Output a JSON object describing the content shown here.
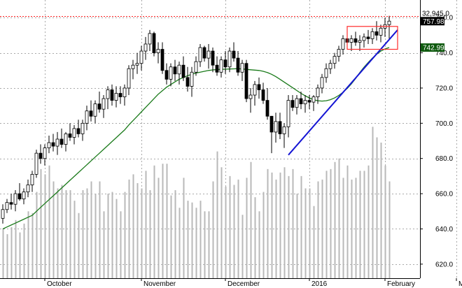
{
  "chart_data": {
    "type": "candlestick",
    "y_axis": {
      "position": "right",
      "ylim": [
        612,
        770
      ],
      "ticks": [
        620,
        640,
        660,
        680,
        700,
        720,
        740,
        760
      ],
      "tick_labels": [
        "620.0",
        "640.0",
        "660.0",
        "680.0",
        "700.0",
        "720.0",
        "740.0",
        "760.0"
      ]
    },
    "x_axis": {
      "month_labels": [
        {
          "label": "October",
          "x": 10
        },
        {
          "label": "November",
          "x": 33
        },
        {
          "label": "December",
          "x": 53
        },
        {
          "label": "2016",
          "x": 73
        },
        {
          "label": "February",
          "x": 91
        },
        {
          "label": "March",
          "x": 108
        }
      ]
    },
    "grid": true,
    "price_tags": [
      {
        "label": "757.98",
        "value": 757.98,
        "bg": "#000000",
        "fg": "#ffffff"
      },
      {
        "label": "742.99",
        "value": 742.99,
        "bg": "#0f5a0f",
        "fg": "#ffffff"
      }
    ],
    "volume_label": "32,945,0",
    "volume_label_value": 762.2,
    "volume_line_value": 761.0,
    "series": [
      {
        "name": "",
        "kind": "ohlc",
        "candles": [
          [
            646,
            654,
            643,
            651
          ],
          [
            651,
            657,
            649,
            655
          ],
          [
            655,
            660,
            651,
            654
          ],
          [
            654,
            662,
            650,
            660
          ],
          [
            660,
            666,
            656,
            657
          ],
          [
            657,
            663,
            654,
            661
          ],
          [
            661,
            668,
            658,
            665
          ],
          [
            665,
            673,
            661,
            671
          ],
          [
            671,
            685,
            669,
            683
          ],
          [
            683,
            688,
            677,
            680
          ],
          [
            680,
            688,
            676,
            686
          ],
          [
            686,
            693,
            683,
            689
          ],
          [
            689,
            694,
            684,
            687
          ],
          [
            687,
            695,
            682,
            691
          ],
          [
            691,
            697,
            686,
            688
          ],
          [
            688,
            695,
            684,
            694
          ],
          [
            694,
            700,
            690,
            692
          ],
          [
            692,
            699,
            688,
            697
          ],
          [
            697,
            702,
            692,
            694
          ],
          [
            694,
            702,
            690,
            700
          ],
          [
            700,
            710,
            696,
            707
          ],
          [
            707,
            713,
            701,
            704
          ],
          [
            704,
            713,
            700,
            711
          ],
          [
            711,
            718,
            706,
            708
          ],
          [
            708,
            716,
            703,
            714
          ],
          [
            714,
            721,
            708,
            719
          ],
          [
            719,
            722,
            710,
            713
          ],
          [
            713,
            721,
            709,
            717
          ],
          [
            717,
            721,
            711,
            715
          ],
          [
            715,
            722,
            710,
            720
          ],
          [
            720,
            733,
            716,
            731
          ],
          [
            731,
            736,
            725,
            733
          ],
          [
            733,
            740,
            728,
            734
          ],
          [
            734,
            744,
            730,
            741
          ],
          [
            741,
            749,
            736,
            745
          ],
          [
            745,
            753,
            741,
            751
          ],
          [
            751,
            752,
            738,
            740
          ],
          [
            740,
            746,
            734,
            742
          ],
          [
            742,
            746,
            728,
            730
          ],
          [
            730,
            734,
            722,
            725
          ],
          [
            725,
            734,
            721,
            732
          ],
          [
            732,
            736,
            724,
            728
          ],
          [
            728,
            735,
            722,
            733
          ],
          [
            733,
            738,
            724,
            726
          ],
          [
            726,
            732,
            718,
            721
          ],
          [
            721,
            732,
            715,
            729
          ],
          [
            729,
            738,
            727,
            735
          ],
          [
            735,
            745,
            732,
            743
          ],
          [
            743,
            744,
            735,
            737
          ],
          [
            737,
            745,
            731,
            741
          ],
          [
            741,
            743,
            729,
            733
          ],
          [
            733,
            738,
            727,
            729
          ],
          [
            729,
            738,
            726,
            736
          ],
          [
            736,
            741,
            728,
            732
          ],
          [
            732,
            743,
            729,
            741
          ],
          [
            741,
            746,
            735,
            737
          ],
          [
            737,
            741,
            727,
            729
          ],
          [
            729,
            736,
            724,
            734
          ],
          [
            734,
            736,
            712,
            714
          ],
          [
            714,
            720,
            706,
            716
          ],
          [
            716,
            724,
            710,
            722
          ],
          [
            722,
            726,
            714,
            719
          ],
          [
            719,
            723,
            711,
            713
          ],
          [
            713,
            720,
            702,
            704
          ],
          [
            704,
            703,
            683,
            695
          ],
          [
            695,
            706,
            689,
            701
          ],
          [
            701,
            706,
            691,
            694
          ],
          [
            694,
            700,
            686,
            698
          ],
          [
            698,
            716,
            692,
            713
          ],
          [
            713,
            716,
            707,
            709
          ],
          [
            709,
            716,
            705,
            714
          ],
          [
            714,
            718,
            708,
            711
          ],
          [
            711,
            716,
            706,
            713
          ],
          [
            713,
            716,
            708,
            712
          ],
          [
            712,
            716,
            707,
            715
          ],
          [
            715,
            722,
            711,
            720
          ],
          [
            720,
            728,
            717,
            726
          ],
          [
            726,
            734,
            723,
            731
          ],
          [
            731,
            736,
            728,
            734
          ],
          [
            734,
            740,
            731,
            738
          ],
          [
            738,
            744,
            735,
            742
          ],
          [
            742,
            750,
            739,
            748
          ],
          [
            748,
            752,
            743,
            746
          ],
          [
            746,
            750,
            741,
            748
          ],
          [
            748,
            752,
            744,
            746
          ],
          [
            746,
            750,
            741,
            747
          ],
          [
            747,
            751,
            743,
            749
          ],
          [
            749,
            753,
            745,
            748
          ],
          [
            748,
            754,
            745,
            752
          ],
          [
            752,
            758,
            747,
            750
          ],
          [
            750,
            756,
            746,
            754
          ],
          [
            754,
            760,
            749,
            756
          ],
          [
            756,
            761,
            748,
            758
          ]
        ]
      },
      {
        "name": "",
        "kind": "moving_average",
        "color": "#1a7a1a",
        "values": [
          640.0,
          641.1,
          642.2,
          643.3,
          644.4,
          645.5,
          646.6,
          647.7,
          650.0,
          652.2,
          654.4,
          656.6,
          658.8,
          661.0,
          663.2,
          665.4,
          667.6,
          669.8,
          672.0,
          674.2,
          676.4,
          678.6,
          680.8,
          683.0,
          685.2,
          687.4,
          689.6,
          691.8,
          694.0,
          696.2,
          699.0,
          701.5,
          704.0,
          706.5,
          709.0,
          711.5,
          714.0,
          716.5,
          718.5,
          720.5,
          722.0,
          723.5,
          725.0,
          726.0,
          727.0,
          727.8,
          728.5,
          729.0,
          729.5,
          730.0,
          730.3,
          730.5,
          730.6,
          730.7,
          730.8,
          730.9,
          731.0,
          730.8,
          730.6,
          730.4,
          730.2,
          730.0,
          729.5,
          728.8,
          727.8,
          726.5,
          725.0,
          723.4,
          721.8,
          720.2,
          718.6,
          717.0,
          715.6,
          714.4,
          713.4,
          712.8,
          712.6,
          712.8,
          713.4,
          714.4,
          715.8,
          717.6,
          719.8,
          722.4,
          725.4,
          728.8,
          731.8,
          734.5,
          737.0,
          739.2,
          741.0,
          742.2,
          742.99
        ]
      }
    ],
    "volume_bars": [
      640,
      637,
      641,
      645,
      638,
      643,
      650,
      649,
      661,
      674,
      671,
      676,
      667,
      663,
      665,
      662,
      662,
      656,
      649,
      662,
      663,
      667,
      660,
      667,
      650,
      660,
      661,
      657,
      650,
      661,
      668,
      671,
      666,
      663,
      673,
      662,
      676,
      669,
      677,
      677,
      659,
      662,
      652,
      669,
      656,
      655,
      652,
      656,
      650,
      650,
      667,
      684,
      675,
      664,
      670,
      665,
      668,
      648,
      669,
      678,
      658,
      650,
      661,
      674,
      672,
      668,
      672,
      675,
      670,
      674,
      660,
      670,
      663,
      663,
      653,
      667,
      668,
      673,
      674,
      678,
      680,
      669,
      676,
      668,
      669,
      673,
      673,
      676,
      698,
      692,
      689,
      676,
      667
    ],
    "trendline": {
      "start": [
        68,
        682
      ],
      "end": [
        94,
        753
      ],
      "color": "#1515d4"
    },
    "highlight_box": {
      "x_range": [
        82,
        94
      ],
      "y_range": [
        742,
        755
      ],
      "color": "#ff2b2b"
    },
    "colors": {
      "candle_up": "#ffffff",
      "candle_down": "#000000",
      "volume": "#b8b8b8",
      "grid": "#a9a9a9",
      "price_line": "#ff2020"
    }
  }
}
